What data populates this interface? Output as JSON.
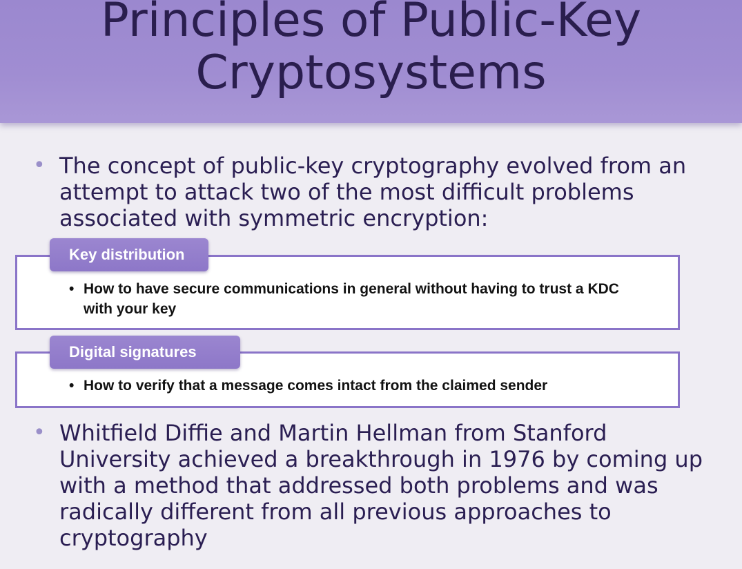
{
  "slide": {
    "title_line1": "Principles of Public-Key",
    "title_line2": "Cryptosystems",
    "bullets": [
      {
        "marker": "•",
        "text": "The concept of public-key cryptography evolved from an attempt to attack two of the most difficult problems associated with symmetric encryption:"
      },
      {
        "marker": "•",
        "text": "Whitfield Diffie and Martin Hellman from Stanford University achieved a breakthrough in 1976 by coming up with a method that addressed both problems and was radically different from all previous approaches to cryptography"
      }
    ],
    "problems": [
      {
        "label": "Key distribution",
        "marker": "•",
        "detail": "How to have secure communications in general without having to trust a KDC with your key"
      },
      {
        "label": "Digital signatures",
        "marker": "•",
        "detail": "How to verify that a message comes intact from the claimed sender"
      }
    ]
  },
  "colors": {
    "header_background": "#a08dd2",
    "accent": "#8a74c8",
    "title_text": "#2a1e4e",
    "body_text": "#2a1e52",
    "slide_background": "#efedf3"
  }
}
